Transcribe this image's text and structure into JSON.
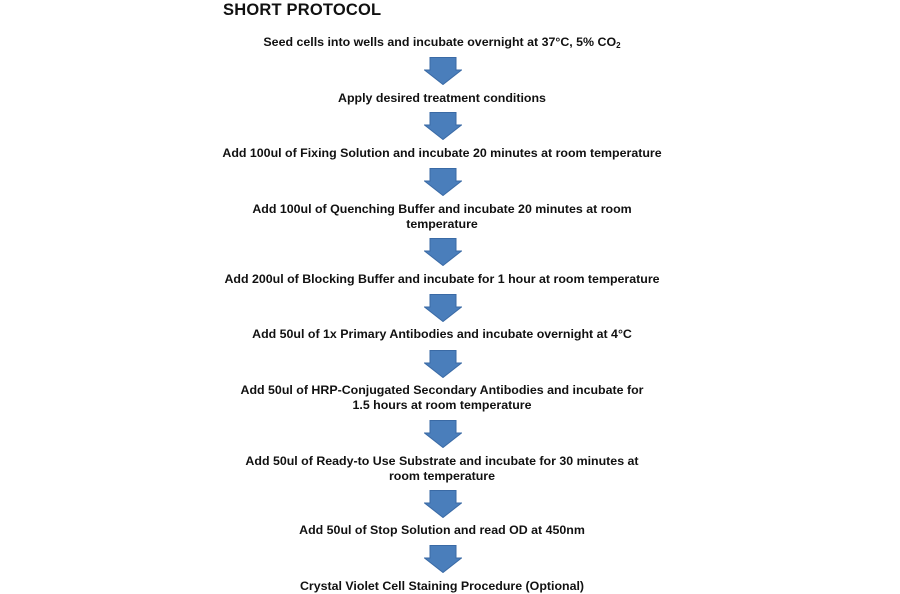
{
  "title": "SHORT PROTOCOL",
  "arrow_color": "#4a7ebb",
  "steps": [
    {
      "text": "Seed cells into wells and incubate overnight at 37°C, 5% CO",
      "sub": "2"
    },
    {
      "text": "Apply desired treatment conditions"
    },
    {
      "text": "Add 100ul of Fixing Solution and incubate 20 minutes at room temperature"
    },
    {
      "text": "Add 100ul of Quenching Buffer and incubate 20 minutes at room temperature"
    },
    {
      "text": "Add 200ul of Blocking Buffer and incubate for 1 hour at room temperature"
    },
    {
      "text": "Add 50ul of 1x Primary Antibodies and incubate overnight at 4°C"
    },
    {
      "text": "Add 50ul of HRP-Conjugated Secondary Antibodies and incubate for 1.5 hours at room temperature"
    },
    {
      "text": "Add 50ul of Ready-to Use Substrate and incubate for 30 minutes at room temperature"
    },
    {
      "text": "Add 50ul of Stop Solution and read OD at 450nm"
    },
    {
      "text": "Crystal Violet Cell Staining Procedure (Optional)"
    }
  ]
}
